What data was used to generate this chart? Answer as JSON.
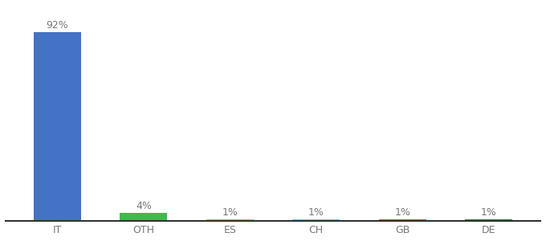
{
  "categories": [
    "IT",
    "OTH",
    "ES",
    "CH",
    "GB",
    "DE"
  ],
  "values": [
    92,
    4,
    1,
    1,
    1,
    1
  ],
  "labels": [
    "92%",
    "4%",
    "1%",
    "1%",
    "1%",
    "1%"
  ],
  "bar_colors": [
    "#4472c4",
    "#3dba4e",
    "#f5a623",
    "#5bc8f5",
    "#c0533a",
    "#3a7a3a"
  ],
  "label_fontsize": 9,
  "tick_fontsize": 9,
  "background_color": "#ffffff",
  "bar_width": 0.55,
  "ylim": [
    0,
    105
  ],
  "label_color": "#777777"
}
